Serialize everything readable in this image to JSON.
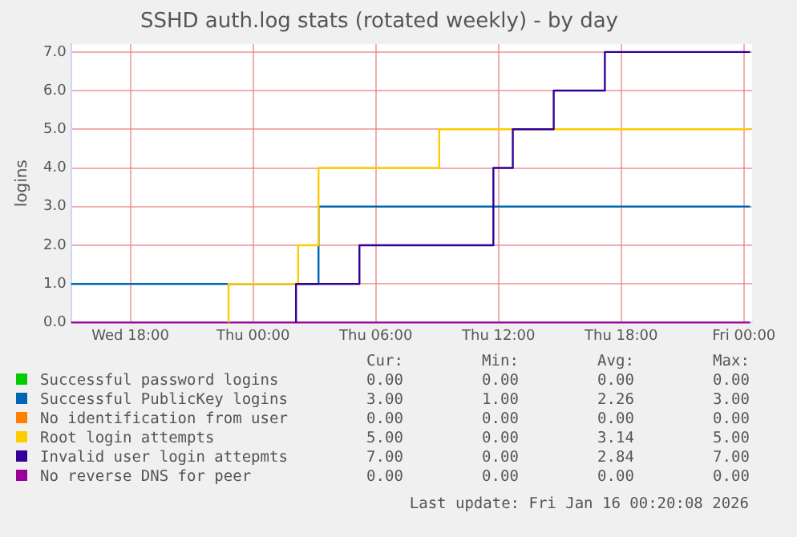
{
  "chart_data": {
    "type": "step",
    "title": "SSHD auth.log stats (rotated weekly) - by day",
    "ylabel": "logins",
    "xlim": [
      "2026-01-14T15:06",
      "2026-01-16T00:24"
    ],
    "xticks": [
      {
        "value": "2026-01-14T18:00",
        "label": "Wed 18:00"
      },
      {
        "value": "2026-01-15T00:00",
        "label": "Thu 00:00"
      },
      {
        "value": "2026-01-15T06:00",
        "label": "Thu 06:00"
      },
      {
        "value": "2026-01-15T12:00",
        "label": "Thu 12:00"
      },
      {
        "value": "2026-01-15T18:00",
        "label": "Thu 18:00"
      },
      {
        "value": "2026-01-16T00:00",
        "label": "Fri 00:00"
      }
    ],
    "ylim": [
      0,
      7.2
    ],
    "yticks": [
      {
        "value": 0,
        "label": "0.0"
      },
      {
        "value": 1,
        "label": "1.0"
      },
      {
        "value": 2,
        "label": "2.0"
      },
      {
        "value": 3,
        "label": "3.0"
      },
      {
        "value": 4,
        "label": "4.0"
      },
      {
        "value": 5,
        "label": "5.0"
      },
      {
        "value": 6,
        "label": "6.0"
      },
      {
        "value": 7,
        "label": "7.0"
      }
    ],
    "grid": true,
    "legend": "bottom",
    "marker": "none",
    "series": [
      {
        "name": "Successful password logins",
        "color": "#00cc00",
        "values": [
          null
        ]
      },
      {
        "name": "Successful PublicKey logins",
        "color": "#0066b3",
        "x": [
          "2026-01-14T15:06",
          "2026-01-15T03:12",
          "2026-01-16T00:18"
        ],
        "values": [
          1,
          3,
          3
        ]
      },
      {
        "name": "No identification from user",
        "color": "#ff8000",
        "values": [
          null
        ]
      },
      {
        "name": "Root login attempts",
        "color": "#ffcc00",
        "x": [
          "2026-01-14T22:48",
          "2026-01-14T22:48",
          "2026-01-15T02:12",
          "2026-01-15T03:12",
          "2026-01-15T09:06",
          "2026-01-16T00:18"
        ],
        "values": [
          0,
          1,
          2,
          4,
          5,
          5
        ]
      },
      {
        "name": "Invalid user login attepmts",
        "color": "#330099",
        "x": [
          "2026-01-15T02:06",
          "2026-01-15T02:06",
          "2026-01-15T05:12",
          "2026-01-15T11:45",
          "2026-01-15T12:42",
          "2026-01-15T14:42",
          "2026-01-15T17:12",
          "2026-01-16T00:18"
        ],
        "values": [
          0,
          1,
          2,
          4,
          5,
          6,
          7,
          7
        ]
      },
      {
        "name": "No reverse DNS for peer",
        "color": "#990099",
        "x": [
          "2026-01-14T15:06",
          "2026-01-16T00:18"
        ],
        "values": [
          0,
          0
        ]
      }
    ],
    "annotations": [
      "Cur:",
      "Min:",
      "Avg:",
      "Max:",
      "0.00",
      "0.00",
      "0.00",
      "0.00",
      "3.00",
      "1.00",
      "2.26",
      "3.00",
      "0.00",
      "0.00",
      "0.00",
      "0.00",
      "5.00",
      "0.00",
      "3.14",
      "5.00",
      "7.00",
      "0.00",
      "2.84",
      "7.00",
      "0.00",
      "0.00",
      "0.00",
      "0.00",
      "Last update: Fri Jan 16 00:20:08 2026"
    ]
  }
}
